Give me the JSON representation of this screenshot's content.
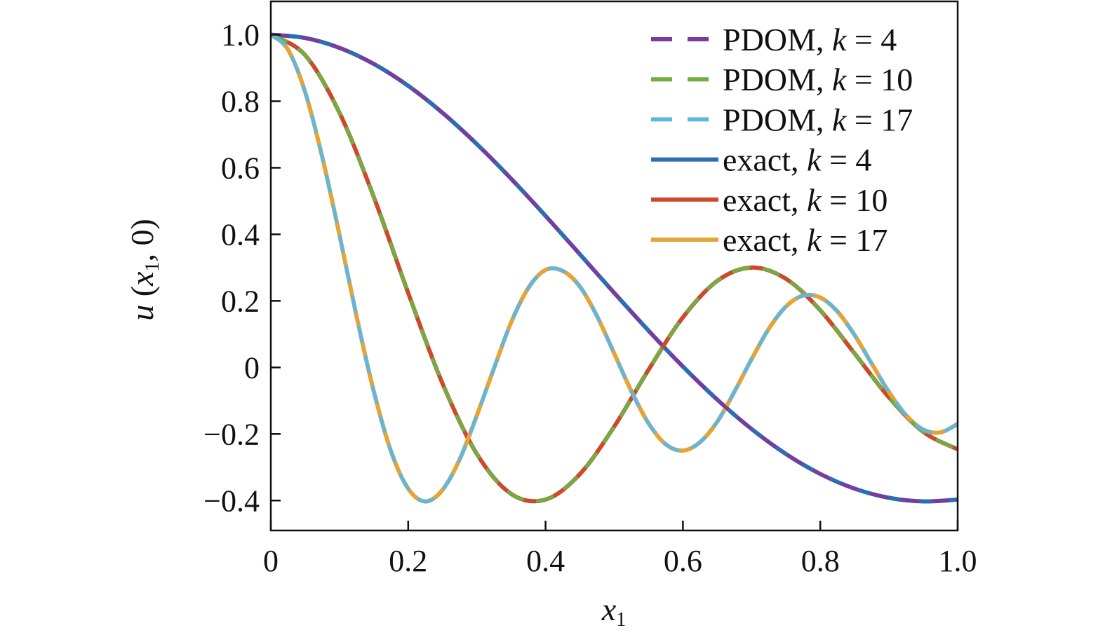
{
  "chart_data": {
    "type": "line",
    "xlabel": "x1",
    "ylabel": "u (x1, 0)",
    "xlim": [
      0,
      1.0
    ],
    "ylim": [
      -0.49,
      1.1
    ],
    "xticks": [
      0,
      0.2,
      0.4,
      0.6,
      0.8,
      1.0
    ],
    "xtick_labels": [
      "0",
      "0.2",
      "0.4",
      "0.6",
      "0.8",
      "1.0"
    ],
    "yticks": [
      1.0,
      0.8,
      0.6,
      0.4,
      0.2,
      0,
      -0.2,
      -0.4
    ],
    "ytick_labels": [
      "1.0",
      "0.8",
      "0.6",
      "0.4",
      "0.2",
      "0",
      "−0.2",
      "−0.4"
    ],
    "grid": false,
    "legend_position": "top-right",
    "series": [
      {
        "name": "PDOM, k = 4",
        "legend_prefix": "PDOM, ",
        "k": "4",
        "style": "dashed",
        "color": "#7b3a9c",
        "x": "k4"
      },
      {
        "name": "PDOM, k = 10",
        "legend_prefix": "PDOM, ",
        "k": "10",
        "style": "dashed",
        "color": "#6fae45",
        "x": "k10"
      },
      {
        "name": "PDOM, k = 17",
        "legend_prefix": "PDOM, ",
        "k": "17",
        "style": "dashed",
        "color": "#5fb7e0",
        "x": "k17"
      },
      {
        "name": "exact, k = 4",
        "legend_prefix": "exact, ",
        "k": "4",
        "style": "solid",
        "color": "#2f6cb3",
        "x": "k4"
      },
      {
        "name": "exact, k = 10",
        "legend_prefix": "exact, ",
        "k": "10",
        "style": "solid",
        "color": "#cc4a2c",
        "x": "k10"
      },
      {
        "name": "exact, k = 17",
        "legend_prefix": "exact, ",
        "k": "17",
        "style": "solid",
        "color": "#e3a43a",
        "x": "k17"
      }
    ],
    "data": {
      "k4": {
        "x": [
          0,
          0.05,
          0.1,
          0.15,
          0.2,
          0.25,
          0.3,
          0.35,
          0.4,
          0.45,
          0.5,
          0.55,
          0.6,
          0.65,
          0.7,
          0.75,
          0.8,
          0.85,
          0.9,
          0.95,
          1.0
        ],
        "y": [
          1,
          0.99,
          0.9604,
          0.912,
          0.8463,
          0.7652,
          0.6711,
          0.5669,
          0.4554,
          0.34,
          0.2239,
          0.1104,
          0.0025,
          -0.0968,
          -0.185,
          -0.2601,
          -0.3202,
          -0.3643,
          -0.3918,
          -0.4026,
          -0.3971
        ]
      },
      "k10": {
        "x": [
          0,
          0.05,
          0.1,
          0.15,
          0.2,
          0.25,
          0.3,
          0.35,
          0.4,
          0.45,
          0.5,
          0.55,
          0.6,
          0.65,
          0.7,
          0.75,
          0.8,
          0.85,
          0.9,
          0.95,
          1.0
        ],
        "y": [
          1,
          0.9385,
          0.7652,
          0.5118,
          0.2239,
          -0.0484,
          -0.2601,
          -0.3801,
          -0.3971,
          -0.3205,
          -0.1776,
          -0.0068,
          0.1506,
          0.2601,
          0.3001,
          0.2663,
          0.1717,
          0.0419,
          -0.0903,
          -0.1939,
          -0.2459
        ]
      },
      "k17": {
        "x": [
          0,
          0.025,
          0.05,
          0.075,
          0.1,
          0.125,
          0.15,
          0.175,
          0.2,
          0.225,
          0.25,
          0.275,
          0.3,
          0.325,
          0.35,
          0.375,
          0.4,
          0.425,
          0.45,
          0.475,
          0.5,
          0.525,
          0.55,
          0.575,
          0.6,
          0.625,
          0.65,
          0.675,
          0.7,
          0.725,
          0.75,
          0.775,
          0.8,
          0.825,
          0.85,
          0.875,
          0.9,
          0.925,
          0.95,
          0.975,
          1.0
        ],
        "y": [
          1,
          0.9553,
          0.8274,
          0.6313,
          0.398,
          0.152,
          -0.0726,
          -0.252,
          -0.3643,
          -0.4028,
          -0.368,
          -0.276,
          -0.144,
          -0.002,
          0.136,
          0.239,
          0.2931,
          0.29,
          0.243,
          0.154,
          0.0419,
          -0.0717,
          -0.168,
          -0.231,
          -0.2498,
          -0.2245,
          -0.163,
          -0.073,
          0.025,
          0.116,
          0.183,
          0.216,
          0.21,
          0.168,
          0.097,
          0.011,
          -0.074,
          -0.144,
          -0.187,
          -0.1953,
          -0.1699
        ]
      }
    }
  }
}
